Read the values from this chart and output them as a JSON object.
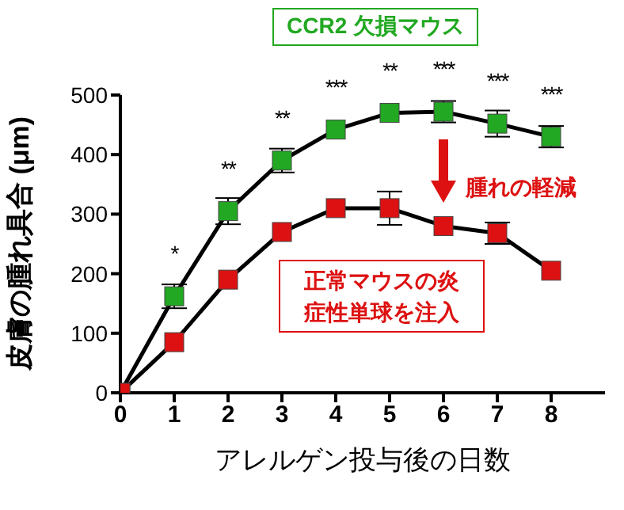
{
  "chart_data": {
    "type": "line",
    "xlabel": "アレルゲン投与後の日数",
    "ylabel": "皮膚の腫れ具合 (μm)",
    "x": [
      0,
      1,
      2,
      3,
      4,
      5,
      6,
      7,
      8
    ],
    "xlim": [
      0,
      9
    ],
    "xticks": [
      0,
      1,
      2,
      3,
      4,
      5,
      6,
      7,
      8
    ],
    "ylim": [
      0,
      500
    ],
    "yticks": [
      0,
      100,
      200,
      300,
      400,
      500
    ],
    "grid": false,
    "legend": false,
    "marker": "square",
    "line_style": "solid",
    "series": [
      {
        "name": "CCR2 欠損マウス",
        "color": "#22a822",
        "values": [
          0,
          162,
          305,
          390,
          442,
          470,
          472,
          452,
          430
        ],
        "errors": [
          null,
          20,
          22,
          20,
          null,
          null,
          18,
          22,
          18
        ]
      },
      {
        "name": "正常マウスの炎症性単球を注入",
        "color": "#dd1111",
        "values": [
          0,
          85,
          190,
          270,
          310,
          310,
          280,
          268,
          205
        ],
        "errors": [
          null,
          null,
          null,
          null,
          null,
          28,
          null,
          18,
          null
        ]
      }
    ],
    "annotations": [
      {
        "text": "*",
        "x": 1,
        "y": 162
      },
      {
        "text": "**",
        "x": 2,
        "y": 305
      },
      {
        "text": "**",
        "x": 3,
        "y": 390
      },
      {
        "text": "***",
        "x": 4,
        "y": 442
      },
      {
        "text": "**",
        "x": 5,
        "y": 470
      },
      {
        "text": "***",
        "x": 6,
        "y": 472
      },
      {
        "text": "***",
        "x": 7,
        "y": 452
      },
      {
        "text": "***",
        "x": 8,
        "y": 430
      },
      "腫れの軽減"
    ]
  }
}
